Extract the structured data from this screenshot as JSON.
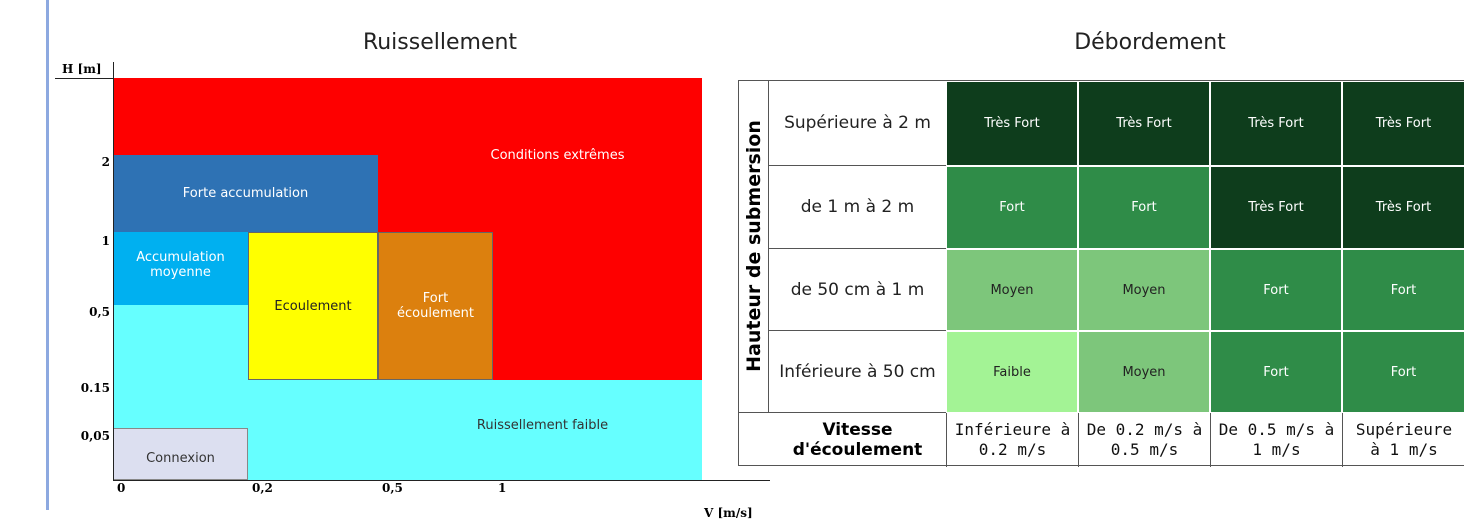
{
  "left": {
    "title": "Ruissellement",
    "y_axis_label": "H [m]",
    "x_axis_label": "V [m/s]",
    "y_ticks": [
      "2",
      "1",
      "0,5",
      "0.15",
      "0,05"
    ],
    "x_ticks": [
      "0",
      "0,2",
      "0,5",
      "1"
    ],
    "zones": [
      "Conditions extrêmes",
      "Forte accumulation",
      "Accumulation moyenne",
      "Ecoulement",
      "Fort écoulement",
      "Ruissellement faible",
      "Connexion"
    ]
  },
  "right": {
    "title": "Débordement",
    "row_header": "Hauteur de submersion",
    "column_header": "Vitesse d'écoulement",
    "columns": [
      "Inférieure à 0.2 m/s",
      "De 0.2 m/s à 0.5 m/s",
      "De 0.5 m/s à 1 m/s",
      "Supérieure à 1 m/s"
    ],
    "rows": [
      {
        "label": "Supérieure à 2 m",
        "cells": [
          {
            "text": "Très Fort",
            "color": "#0e3d1c"
          },
          {
            "text": "Très Fort",
            "color": "#0e3d1c"
          },
          {
            "text": "Très Fort",
            "color": "#0e3d1c"
          },
          {
            "text": "Très Fort",
            "color": "#0e3d1c"
          }
        ]
      },
      {
        "label": "de 1 m à 2 m",
        "cells": [
          {
            "text": "Fort",
            "color": "#2f8c48"
          },
          {
            "text": "Fort",
            "color": "#2f8c48"
          },
          {
            "text": "Très Fort",
            "color": "#0e3d1c"
          },
          {
            "text": "Très Fort",
            "color": "#0e3d1c"
          }
        ]
      },
      {
        "label": "de 50 cm à 1 m",
        "cells": [
          {
            "text": "Moyen",
            "color": "#7dc67b"
          },
          {
            "text": "Moyen",
            "color": "#7dc67b"
          },
          {
            "text": "Fort",
            "color": "#2f8c48"
          },
          {
            "text": "Fort",
            "color": "#2f8c48"
          }
        ]
      },
      {
        "label": "Inférieure à 50 cm",
        "cells": [
          {
            "text": "Faible",
            "color": "#a3f395"
          },
          {
            "text": "Moyen",
            "color": "#7dc67b"
          },
          {
            "text": "Fort",
            "color": "#2f8c48"
          },
          {
            "text": "Fort",
            "color": "#2f8c48"
          }
        ]
      }
    ]
  }
}
